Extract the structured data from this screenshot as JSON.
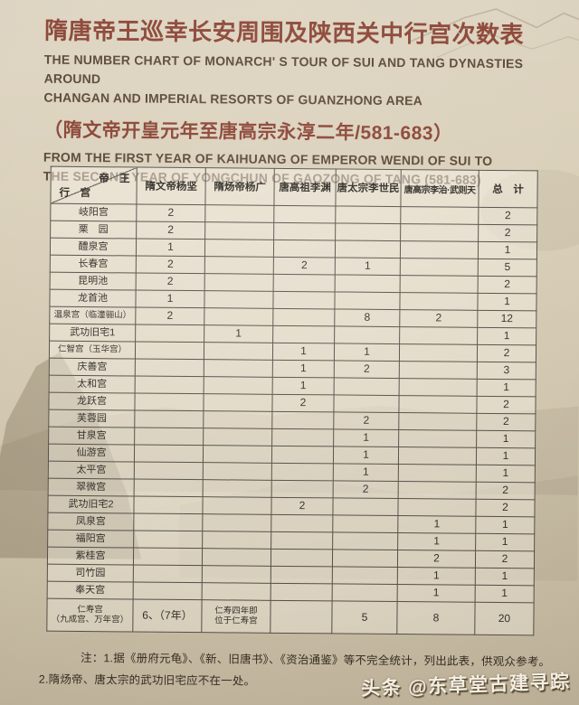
{
  "header": {
    "title_cn": "隋唐帝王巡幸长安周围及陕西关中行宫次数表",
    "title_en_line1": "THE NUMBER CHART OF MONARCH' S TOUR OF SUI AND TANG DYNASTIES AROUND",
    "title_en_line2": "CHANGAN AND IMPERIAL RESORTS OF GUANZHONG AREA",
    "subtitle_cn": "（隋文帝开皇元年至唐高宗永淳二年/581-683）",
    "subtitle_en_line1": "FROM THE FIRST YEAR OF KAIHUANG OF EMPEROR WENDI OF SUI TO",
    "subtitle_en_line2": "THE SECOND YEAR OF YONGCHUN OF GAOZONG OF TANG (581-683)"
  },
  "table": {
    "corner": {
      "emperor": "帝　王",
      "palace": "行　宫"
    },
    "columns": [
      "隋文帝杨坚",
      "隋炀帝杨广",
      "唐高祖李渊",
      "唐太宗李世民",
      "唐高宗李治·武则天",
      "总　计"
    ],
    "rows": [
      {
        "label": "岐阳宫",
        "values": [
          "2",
          "",
          "",
          "",
          "",
          "2"
        ]
      },
      {
        "label": "栗　园",
        "values": [
          "2",
          "",
          "",
          "",
          "",
          "2"
        ]
      },
      {
        "label": "醴泉宫",
        "values": [
          "1",
          "",
          "",
          "",
          "",
          "1"
        ]
      },
      {
        "label": "长春宫",
        "values": [
          "2",
          "",
          "2",
          "1",
          "",
          "5"
        ]
      },
      {
        "label": "昆明池",
        "values": [
          "2",
          "",
          "",
          "",
          "",
          "2"
        ]
      },
      {
        "label": "龙首池",
        "values": [
          "1",
          "",
          "",
          "",
          "",
          "1"
        ]
      },
      {
        "label": "温泉宫（临潼骊山）",
        "values": [
          "2",
          "",
          "",
          "8",
          "2",
          "12"
        ]
      },
      {
        "label": "武功旧宅1",
        "values": [
          "",
          "1",
          "",
          "",
          "",
          "1"
        ]
      },
      {
        "label": "仁智宫（玉华宫）",
        "values": [
          "",
          "",
          "1",
          "1",
          "",
          "2"
        ]
      },
      {
        "label": "庆善宫",
        "values": [
          "",
          "",
          "1",
          "2",
          "",
          "3"
        ]
      },
      {
        "label": "太和宫",
        "values": [
          "",
          "",
          "1",
          "",
          "",
          "1"
        ]
      },
      {
        "label": "龙跃宫",
        "values": [
          "",
          "",
          "2",
          "",
          "",
          "2"
        ]
      },
      {
        "label": "芙蓉园",
        "values": [
          "",
          "",
          "",
          "2",
          "",
          "2"
        ]
      },
      {
        "label": "甘泉宫",
        "values": [
          "",
          "",
          "",
          "1",
          "",
          "1"
        ]
      },
      {
        "label": "仙游宫",
        "values": [
          "",
          "",
          "",
          "1",
          "",
          "1"
        ]
      },
      {
        "label": "太平宫",
        "values": [
          "",
          "",
          "",
          "1",
          "",
          "1"
        ]
      },
      {
        "label": "翠微宫",
        "values": [
          "",
          "",
          "",
          "2",
          "",
          "2"
        ]
      },
      {
        "label": "武功旧宅2",
        "values": [
          "",
          "",
          "2",
          "",
          "",
          "2"
        ]
      },
      {
        "label": "凤泉宫",
        "values": [
          "",
          "",
          "",
          "",
          "1",
          "1"
        ]
      },
      {
        "label": "福阳宫",
        "values": [
          "",
          "",
          "",
          "",
          "1",
          "1"
        ]
      },
      {
        "label": "紫桂宫",
        "values": [
          "",
          "",
          "",
          "",
          "2",
          "2"
        ]
      },
      {
        "label": "司竹园",
        "values": [
          "",
          "",
          "",
          "",
          "1",
          "1"
        ]
      },
      {
        "label": "奉天宫",
        "values": [
          "",
          "",
          "",
          "",
          "1",
          "1"
        ]
      },
      {
        "label": "仁寿宫\n（九成宫、万年宫）",
        "values": [
          "6、（7年）",
          "仁寿四年即\n位于仁寿宫",
          "",
          "5",
          "8",
          "20"
        ]
      }
    ]
  },
  "notes": {
    "line1": "注：1.据《册府元龟》、《新、旧唐书》、《资治通鉴》等不完全统计，列出此表，供观众参考。",
    "line2": "2.隋炀帝、唐太宗的武功旧宅应不在一处。"
  },
  "watermark": {
    "logo": "头条",
    "handle": "@东草堂古建寻踪"
  },
  "colors": {
    "title_red": "#8a4334",
    "english_sepia": "#5a4736",
    "paper_beige": "#d8ceb7",
    "grid_line": "#55504a",
    "table_ink": "#33302b"
  }
}
